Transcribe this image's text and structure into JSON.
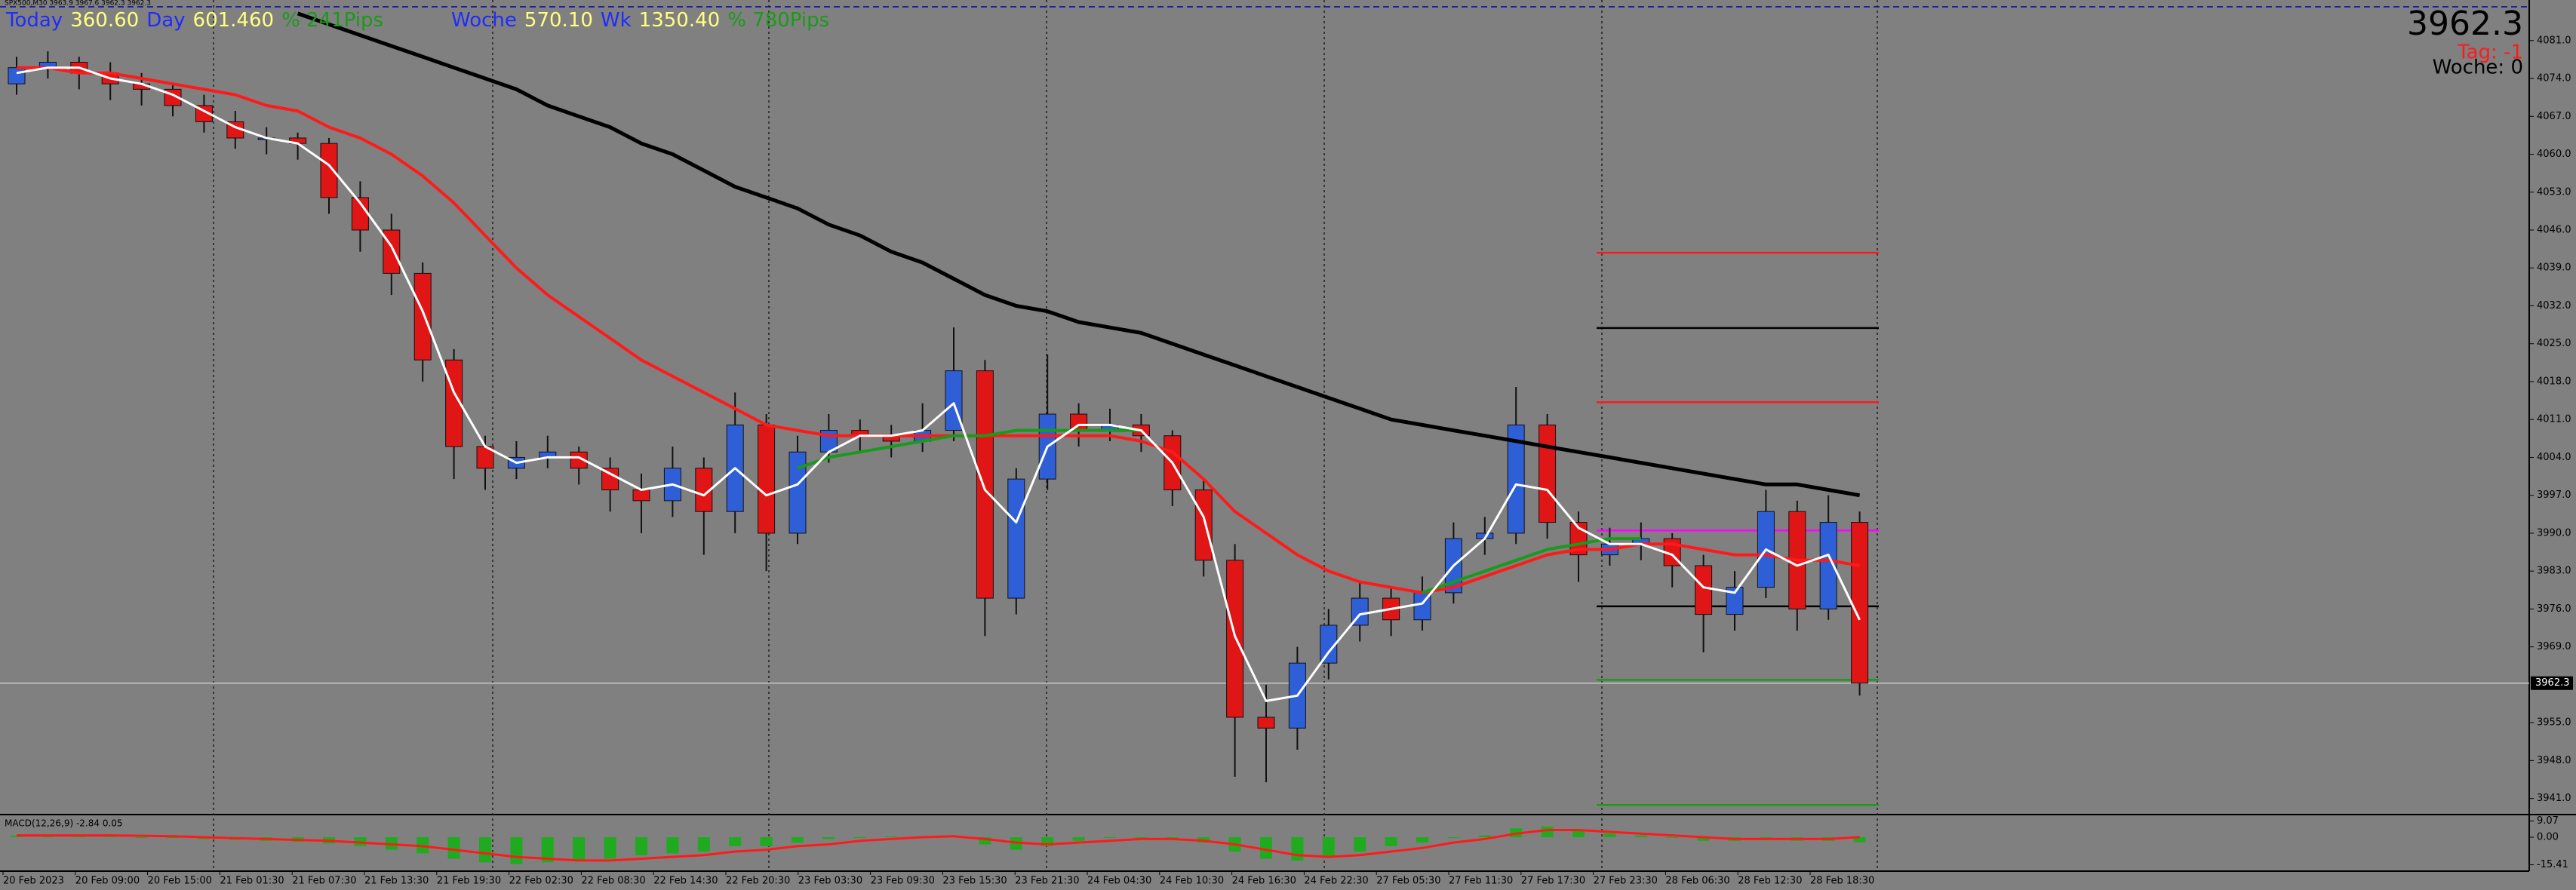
{
  "chart_data": {
    "type": "candlestick",
    "symbol_info": "SPX500,M30  3963.9 3967.6 3962.3 3962.3",
    "header": [
      {
        "text": "Today",
        "color": "#1f2bff"
      },
      {
        "text": "360.60",
        "color": "#ffff80"
      },
      {
        "text": "Day",
        "color": "#1f2bff"
      },
      {
        "text": "601.460",
        "color": "#ffff80"
      },
      {
        "text": "% 241Pips",
        "color": "#1a9a1a"
      },
      {
        "text": "Woche",
        "color": "#1f2bff"
      },
      {
        "text": "570.10",
        "color": "#ffff80"
      },
      {
        "text": "Wk",
        "color": "#1f2bff"
      },
      {
        "text": "1350.40",
        "color": "#ffff80"
      },
      {
        "text": "% 780Pips",
        "color": "#1a9a1a"
      }
    ],
    "current_price": 3962.3,
    "day_label": "Tag: -1",
    "week_label": "Woche: 0",
    "up_color": "#2f5fd6",
    "down_color": "#e01515",
    "ylim": [
      3938.3,
      4087.1
    ],
    "yticks": [
      {
        "value": 4081,
        "label": "4081.0"
      },
      {
        "value": 4074,
        "label": "4074.0"
      },
      {
        "value": 4067,
        "label": "4067.0"
      },
      {
        "value": 4060,
        "label": "4060.0"
      },
      {
        "value": 4053,
        "label": "4053.0"
      },
      {
        "value": 4046,
        "label": "4046.0"
      },
      {
        "value": 4039,
        "label": "4039.0"
      },
      {
        "value": 4032,
        "label": "4032.0"
      },
      {
        "value": 4025,
        "label": "4025.0"
      },
      {
        "value": 4018,
        "label": "4018.0"
      },
      {
        "value": 4011,
        "label": "4011.0"
      },
      {
        "value": 4004,
        "label": "4004.0"
      },
      {
        "value": 3997,
        "label": "3997.0"
      },
      {
        "value": 3990,
        "label": "3990.0"
      },
      {
        "value": 3983,
        "label": "3983.0"
      },
      {
        "value": 3976,
        "label": "3976.0"
      },
      {
        "value": 3969,
        "label": "3969.0"
      },
      {
        "value": 3955,
        "label": "3955.0"
      },
      {
        "value": 3948,
        "label": "3948.0"
      },
      {
        "value": 3941,
        "label": "3941.0"
      }
    ],
    "xlabels": [
      "20 Feb 2023",
      "20 Feb 09:00",
      "20 Feb 15:00",
      "21 Feb 01:30",
      "21 Feb 07:30",
      "21 Feb 13:30",
      "21 Feb 19:30",
      "22 Feb 02:30",
      "22 Feb 08:30",
      "22 Feb 14:30",
      "22 Feb 20:30",
      "23 Feb 03:30",
      "23 Feb 09:30",
      "23 Feb 15:30",
      "23 Feb 21:30",
      "24 Feb 04:30",
      "24 Feb 10:30",
      "24 Feb 16:30",
      "24 Feb 22:30",
      "27 Feb 05:30",
      "27 Feb 11:30",
      "27 Feb 17:30",
      "27 Feb 23:30",
      "28 Feb 06:30",
      "28 Feb 12:30",
      "28 Feb 18:30"
    ],
    "candles": [
      [
        4073,
        4078,
        4071,
        4076
      ],
      [
        4076,
        4079,
        4074,
        4077
      ],
      [
        4077,
        4078,
        4072,
        4075
      ],
      [
        4075,
        4077,
        4070,
        4073
      ],
      [
        4073,
        4075,
        4069,
        4072
      ],
      [
        4072,
        4073,
        4067,
        4069
      ],
      [
        4069,
        4071,
        4064,
        4066
      ],
      [
        4066,
        4068,
        4061,
        4063
      ],
      [
        4063,
        4065,
        4060,
        4063
      ],
      [
        4063,
        4064,
        4059,
        4062
      ],
      [
        4062,
        4063,
        4049,
        4052
      ],
      [
        4052,
        4055,
        4042,
        4046
      ],
      [
        4046,
        4049,
        4034,
        4038
      ],
      [
        4038,
        4040,
        4018,
        4022
      ],
      [
        4022,
        4024,
        4000,
        4006
      ],
      [
        4006,
        4008,
        3998,
        4002
      ],
      [
        4002,
        4007,
        4000,
        4004
      ],
      [
        4004,
        4008,
        4002,
        4005
      ],
      [
        4005,
        4006,
        3999,
        4002
      ],
      [
        4002,
        4004,
        3994,
        3998
      ],
      [
        3998,
        4001,
        3990,
        3996
      ],
      [
        3996,
        4006,
        3993,
        4002
      ],
      [
        4002,
        4004,
        3986,
        3994
      ],
      [
        3994,
        4016,
        3990,
        4010
      ],
      [
        4010,
        4012,
        3983,
        3990
      ],
      [
        3990,
        4008,
        3988,
        4005
      ],
      [
        4005,
        4012,
        4003,
        4009
      ],
      [
        4009,
        4011,
        4005,
        4008
      ],
      [
        4008,
        4010,
        4004,
        4007
      ],
      [
        4007,
        4014,
        4005,
        4009
      ],
      [
        4009,
        4028,
        4007,
        4020
      ],
      [
        4020,
        4022,
        3971,
        3978
      ],
      [
        3978,
        4002,
        3975,
        4000
      ],
      [
        4000,
        4023,
        3998,
        4012
      ],
      [
        4012,
        4014,
        4006,
        4009
      ],
      [
        4009,
        4013,
        4007,
        4010
      ],
      [
        4010,
        4012,
        4005,
        4008
      ],
      [
        4008,
        4009,
        3995,
        3998
      ],
      [
        3998,
        4000,
        3982,
        3985
      ],
      [
        3985,
        3988,
        3945,
        3956
      ],
      [
        3956,
        3962,
        3944,
        3954
      ],
      [
        3954,
        3969,
        3950,
        3966
      ],
      [
        3966,
        3976,
        3963,
        3973
      ],
      [
        3973,
        3981,
        3970,
        3978
      ],
      [
        3978,
        3980,
        3971,
        3974
      ],
      [
        3974,
        3982,
        3972,
        3979
      ],
      [
        3979,
        3992,
        3977,
        3989
      ],
      [
        3989,
        3993,
        3986,
        3990
      ],
      [
        3990,
        4017,
        3988,
        4010
      ],
      [
        4010,
        4012,
        3989,
        3992
      ],
      [
        3992,
        3994,
        3981,
        3986
      ],
      [
        3986,
        3991,
        3984,
        3988
      ],
      [
        3988,
        3992,
        3985,
        3989
      ],
      [
        3989,
        3990,
        3980,
        3984
      ],
      [
        3984,
        3986,
        3968,
        3975
      ],
      [
        3975,
        3983,
        3972,
        3980
      ],
      [
        3980,
        3998,
        3978,
        3994
      ],
      [
        3994,
        3996,
        3972,
        3976
      ],
      [
        3976,
        3997,
        3974,
        3992
      ],
      [
        3992,
        3994,
        3960,
        3962.3
      ]
    ],
    "series": [
      {
        "color": "#000000",
        "width": 5,
        "values": [
          null,
          null,
          null,
          null,
          null,
          null,
          null,
          null,
          null,
          4086,
          4084,
          4082,
          4080,
          4078,
          4076,
          4074,
          4072,
          4069,
          4067,
          4065,
          4062,
          4060,
          4057,
          4054,
          4052,
          4050,
          4047,
          4045,
          4042,
          4040,
          4037,
          4034,
          4032,
          4031,
          4029,
          4028,
          4027,
          4025,
          4023,
          4021,
          4019,
          4017,
          4015,
          4013,
          4011,
          4010,
          4009,
          4008,
          4007,
          4006,
          4005,
          4004,
          4003,
          4002,
          4001,
          4000,
          3999,
          3999,
          3998,
          3997
        ]
      },
      {
        "color": "#ff1a1a",
        "width": 4,
        "values": [
          4076,
          4076,
          4075,
          4075,
          4074,
          4073,
          4072,
          4071,
          4069,
          4068,
          4065,
          4063,
          4060,
          4056,
          4051,
          4045,
          4039,
          4034,
          4030,
          4026,
          4022,
          4019,
          4016,
          4013,
          4010,
          4009,
          4008,
          4008,
          4008,
          4008,
          4008,
          4008,
          4008,
          4008,
          4008,
          4008,
          4007,
          4005,
          4000,
          3994,
          3990,
          3986,
          3983,
          3981,
          3980,
          3979,
          3980,
          3982,
          3984,
          3986,
          3987,
          3987,
          3988,
          3988,
          3987,
          3986,
          3986,
          3985,
          3985,
          3984
        ]
      },
      {
        "color": "#1a9a1a",
        "width": 4,
        "values": [
          null,
          null,
          null,
          null,
          null,
          null,
          null,
          null,
          null,
          null,
          null,
          null,
          null,
          null,
          null,
          null,
          null,
          null,
          null,
          null,
          null,
          null,
          null,
          null,
          null,
          4002,
          4004,
          4005,
          4006,
          4007,
          4008,
          4008,
          4009,
          4009,
          4009,
          4009,
          4009,
          null,
          null,
          null,
          null,
          null,
          null,
          null,
          null,
          3979,
          3981,
          3983,
          3985,
          3987,
          3988,
          3989,
          3989,
          null,
          null,
          null,
          null,
          null,
          null,
          null
        ]
      },
      {
        "color": "#ffffff",
        "width": 3,
        "values": [
          4075,
          4076,
          4076,
          4074,
          4073,
          4071,
          4068,
          4065,
          4063,
          4062,
          4058,
          4051,
          4043,
          4031,
          4016,
          4006,
          4003,
          4004,
          4004,
          4001,
          3998,
          3999,
          3997,
          4002,
          3997,
          3999,
          4005,
          4008,
          4008,
          4009,
          4014,
          3998,
          3992,
          4006,
          4010,
          4010,
          4009,
          4003,
          3993,
          3971,
          3959,
          3960,
          3968,
          3975,
          3976,
          3977,
          3984,
          3989,
          3999,
          3998,
          3991,
          3988,
          3988,
          3986,
          3980,
          3979,
          3987,
          3984,
          3986,
          3974
        ]
      }
    ],
    "levels": [
      {
        "value": 4041.8,
        "color": "#ff1a1a"
      },
      {
        "value": 4027.9,
        "color": "#000000"
      },
      {
        "value": 4014.2,
        "color": "#ff1a1a"
      },
      {
        "value": 3990.5,
        "color": "#ff00ff"
      },
      {
        "value": 3976.5,
        "color": "#000000"
      },
      {
        "value": 3962.9,
        "color": "#1a9a1a"
      },
      {
        "value": 3939.8,
        "color": "#1a9a1a"
      }
    ],
    "macd": {
      "label": "MACD(12,26,9) -2.84 0.05",
      "color": "#1faa1f",
      "signal_color": "#ff1a1a",
      "ylim": [
        -18.1,
        11.8
      ],
      "yticks": [
        9.07,
        {
          "value": 0,
          "label": "0.00"
        },
        -15.41
      ],
      "values": [
        1,
        1,
        1,
        0.5,
        0,
        -0.5,
        -1,
        -1.5,
        -2,
        -2.5,
        -3.5,
        -5,
        -7,
        -9,
        -12,
        -14,
        -15,
        -14,
        -13,
        -12,
        -10,
        -9,
        -8,
        -5,
        -5,
        -3,
        -1,
        0,
        0.5,
        0.5,
        1,
        -4,
        -7,
        -5,
        -2,
        0,
        0,
        -1,
        -3,
        -8,
        -12,
        -13,
        -11,
        -8,
        -5,
        -3,
        0,
        1,
        5,
        6,
        4,
        2,
        1,
        0,
        -2,
        -2,
        -1,
        -2,
        -2,
        -2.84
      ],
      "signal": [
        1,
        1,
        1,
        1,
        0.8,
        0.5,
        0,
        -0.5,
        -1,
        -1.5,
        -2,
        -3,
        -4,
        -5,
        -7,
        -9,
        -11,
        -12,
        -13,
        -13,
        -12,
        -11,
        -10,
        -8,
        -7,
        -5,
        -4,
        -2,
        -1,
        0,
        0.5,
        -1,
        -3,
        -4,
        -3,
        -2,
        -1,
        -1,
        -2,
        -4,
        -7,
        -10,
        -11,
        -10,
        -8,
        -6,
        -3,
        -1,
        2,
        4,
        4,
        3,
        2,
        1,
        0,
        -1,
        -1,
        -1,
        -1,
        0.05
      ]
    }
  }
}
